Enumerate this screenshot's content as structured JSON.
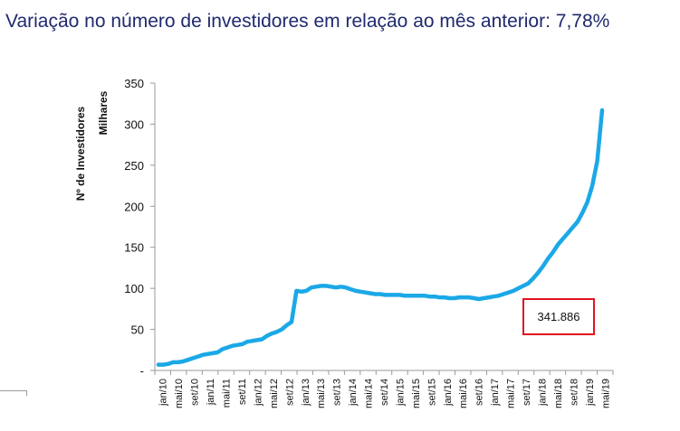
{
  "headline": {
    "label": "Variação no número de investidores em relação ao mês anterior: ",
    "value": "7,78%"
  },
  "callout": {
    "text": "341.886"
  },
  "colors": {
    "line": "#1ba8e6",
    "callout_border": "#e0141e",
    "headline": "#1f2a6e"
  },
  "chart_data": {
    "type": "line",
    "title": "",
    "ylabel": "Nº de Investidores",
    "ylabel_sub": "Milhares",
    "xlabel": "",
    "ylim": [
      0,
      350
    ],
    "yticks": [
      0,
      50,
      100,
      150,
      200,
      250,
      300,
      350
    ],
    "ytick_labels": [
      "-",
      "50",
      "100",
      "150",
      "200",
      "250",
      "300",
      "350"
    ],
    "xtick_labels": [
      "jan/10",
      "mai/10",
      "set/10",
      "jan/11",
      "mai/11",
      "set/11",
      "jan/12",
      "mai/12",
      "set/12",
      "jan/13",
      "mai/13",
      "set/13",
      "jan/14",
      "mai/14",
      "set/14",
      "jan/15",
      "mai/15",
      "set/15",
      "jan/16",
      "mai/16",
      "set/16",
      "jan/17",
      "mai/17",
      "set/17",
      "jan/18",
      "mai/18",
      "set/18",
      "jan/19",
      "mai/19"
    ],
    "grid": false,
    "legend": "none",
    "series": [
      {
        "values": [
          7,
          7,
          8,
          10,
          10,
          11,
          13,
          15,
          17,
          19,
          20,
          21,
          22,
          26,
          28,
          30,
          31,
          32,
          35,
          36,
          37,
          38,
          42,
          45,
          47,
          50,
          55,
          59,
          97,
          96,
          97,
          101,
          102,
          103,
          103,
          102,
          101,
          102,
          101,
          99,
          97,
          96,
          95,
          94,
          93,
          93,
          92,
          92,
          92,
          92,
          91,
          91,
          91,
          91,
          91,
          90,
          90,
          89,
          89,
          88,
          88,
          89,
          89,
          89,
          88,
          87,
          88,
          89,
          90,
          91,
          93,
          95,
          97,
          100,
          103,
          106,
          112,
          119,
          127,
          136,
          144,
          153,
          160,
          167,
          174,
          181,
          192,
          205,
          225,
          255,
          317
        ]
      }
    ]
  }
}
